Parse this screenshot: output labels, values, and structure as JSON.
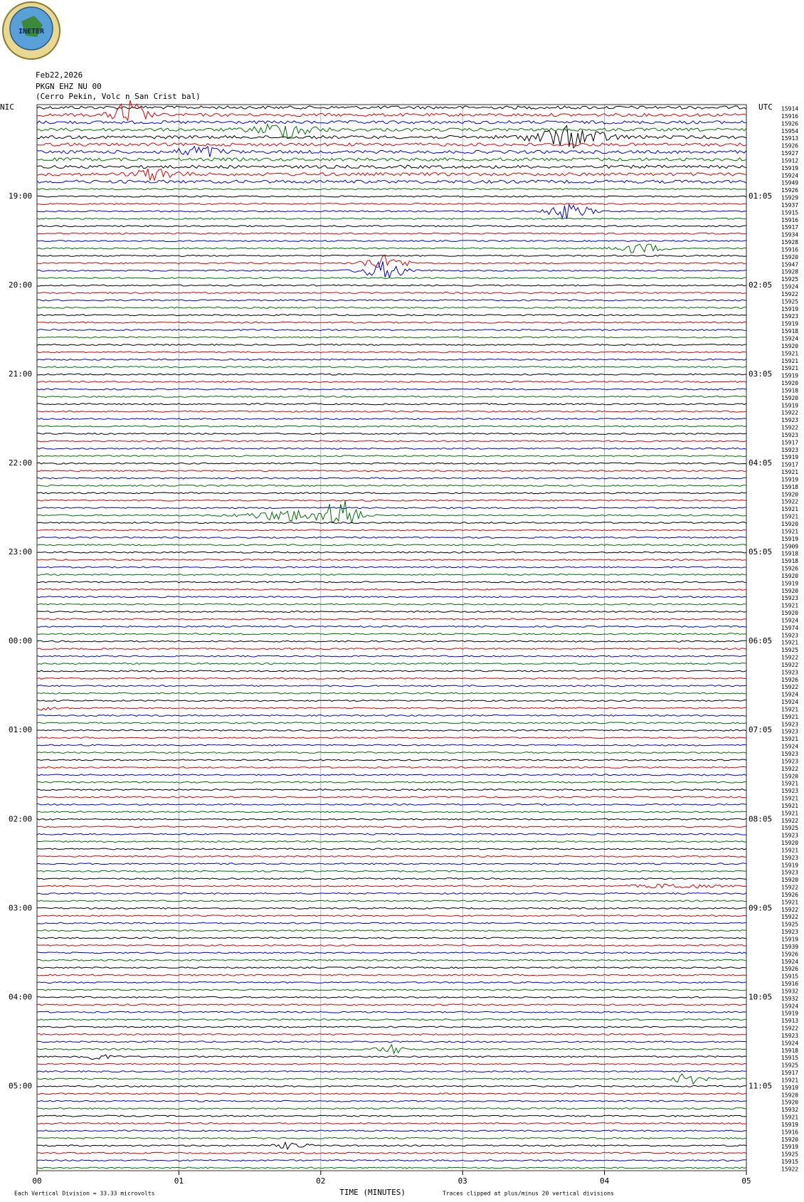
{
  "header": {
    "logo": "INETER",
    "date": "Feb22,2026",
    "station": "PKGN EHZ NU 00",
    "location": "(Cerro Pekin, Volc n San Crist bal)"
  },
  "left_label": "NIC",
  "right_label": "UTC",
  "left_hours": [
    "19:00",
    "20:00",
    "21:00",
    "22:00",
    "23:00",
    "00:00",
    "01:00",
    "02:00",
    "03:00",
    "04:00",
    "05:00"
  ],
  "right_hours": [
    "01:05",
    "02:05",
    "03:05",
    "04:05",
    "05:05",
    "06:05",
    "07:05",
    "08:05",
    "09:05",
    "10:05",
    "11:05"
  ],
  "trace_values": [
    15914,
    15916,
    15926,
    15954,
    15913,
    15926,
    15927,
    15912,
    15919,
    15924,
    15949,
    15926,
    15929,
    15937,
    15915,
    15916,
    15917,
    15934,
    15928,
    15916,
    15920,
    15947,
    15928,
    15925,
    15924,
    15922,
    15925,
    15919,
    15923,
    15919,
    15918,
    15924,
    15920,
    15921,
    15921,
    15921,
    15919,
    15920,
    15918,
    15920,
    15919,
    15922,
    15923,
    15922,
    15923,
    15917,
    15923,
    15919,
    15917,
    15921,
    15919,
    15918,
    15920,
    15922,
    15921,
    15921,
    15920,
    15921,
    15919,
    15909,
    15918,
    15918,
    15926,
    15920,
    15919,
    15920,
    15923,
    15921,
    15920,
    15924,
    15974,
    15923,
    15921,
    15925,
    15922,
    15922,
    15923,
    15926,
    15922,
    15924,
    15924,
    15921,
    15921,
    15923,
    15923,
    15921,
    15924,
    15923,
    15923,
    15922,
    15920,
    15921,
    15923,
    15921,
    15921,
    15921,
    15922,
    15925,
    15923,
    15920,
    15921,
    15923,
    15919,
    15923,
    15920,
    15922,
    15926,
    15921,
    15922,
    15922,
    15925,
    15923,
    15919,
    15939,
    15926,
    15924,
    15926,
    15915,
    15916,
    15932,
    15932,
    15924,
    15919,
    15913,
    15922,
    15923,
    15924,
    15918,
    15915,
    15925,
    15917,
    15921,
    15919,
    15920,
    15920,
    15932,
    15921,
    15919,
    15916,
    15920,
    15919,
    15925,
    15915,
    15922
  ],
  "x_ticks": [
    "00",
    "01",
    "02",
    "03",
    "04",
    "05"
  ],
  "x_label": "TIME (MINUTES)",
  "footer": {
    "scale": "Each Vertical Division =  33.33 microvolts",
    "clip": "Traces clipped at plus/minus 20 vertical divisions"
  }
}
